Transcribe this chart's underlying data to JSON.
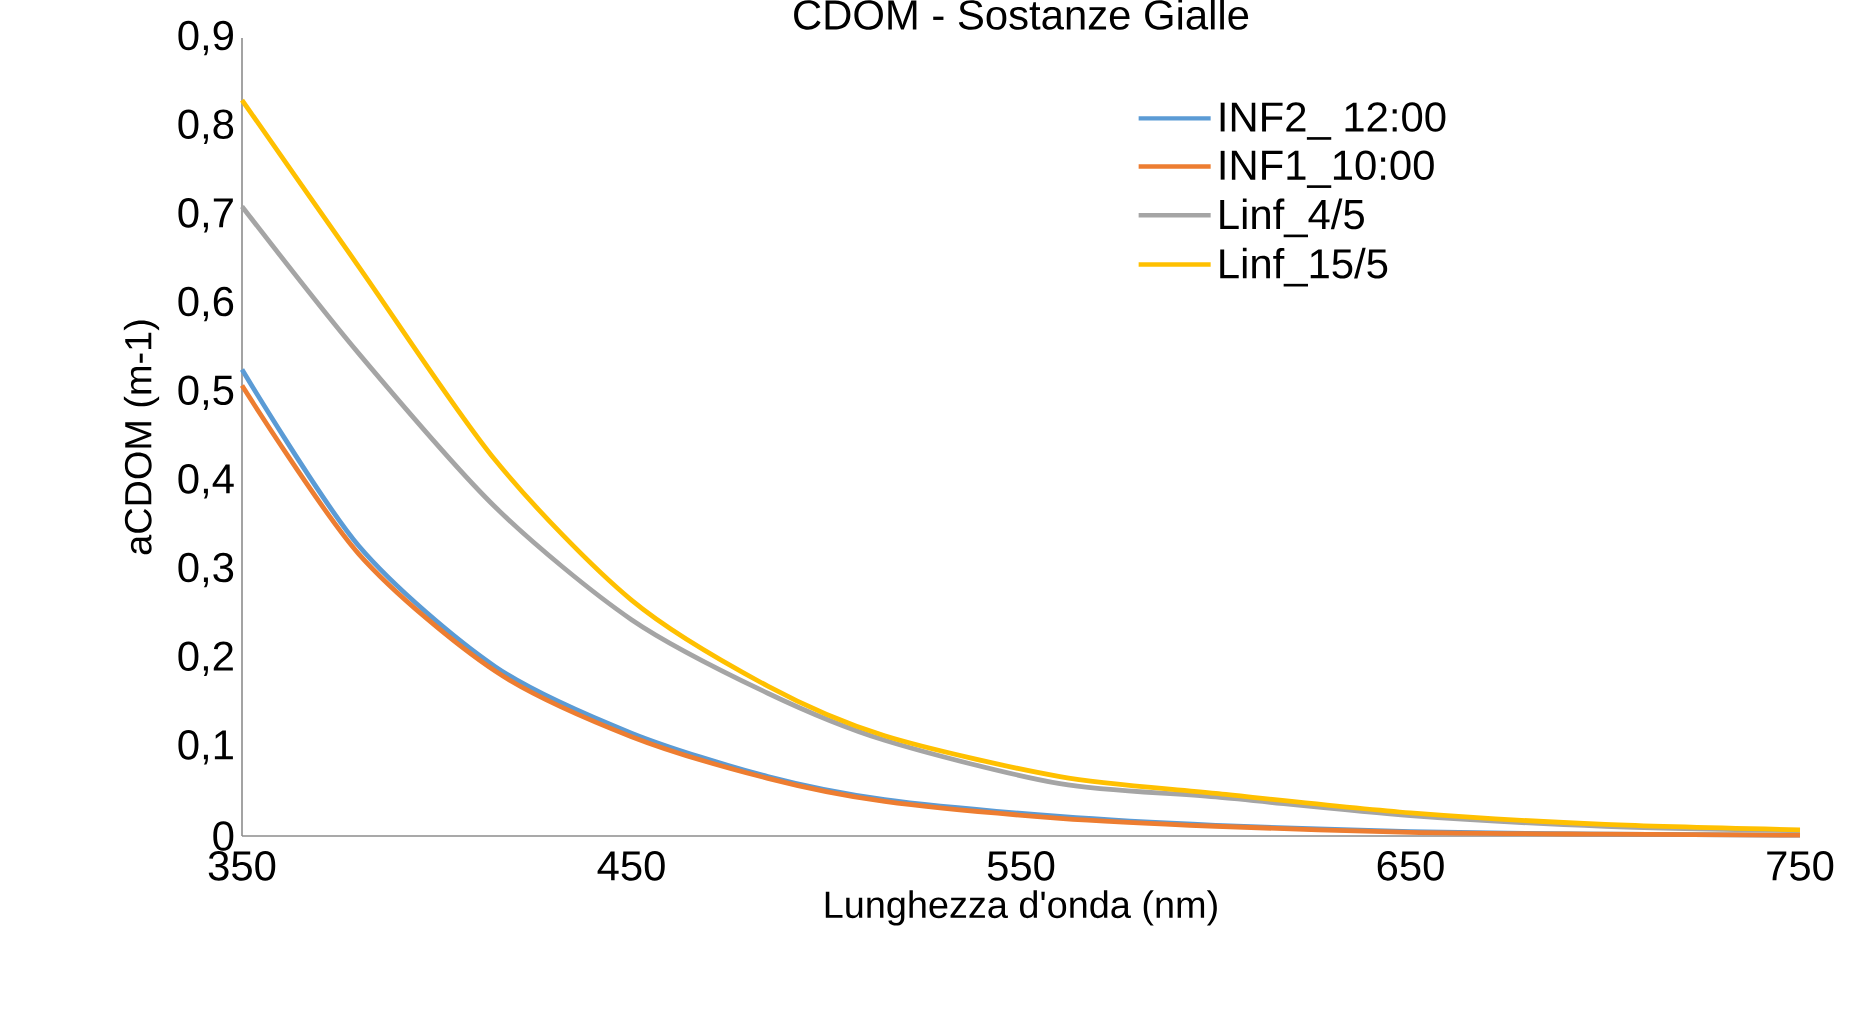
{
  "chart_data": {
    "type": "line",
    "title": "CDOM - Sostanze Gialle",
    "xlabel": "Lunghezza d'onda (nm)",
    "ylabel": "aCDOM (m-1)",
    "x": [
      350,
      380,
      415,
      450,
      485,
      515,
      560,
      600,
      650,
      700,
      750
    ],
    "series": [
      {
        "name": "INF2_ 12:00",
        "color": "#5b9bd5",
        "values": [
          0.526,
          0.327,
          0.191,
          0.116,
          0.067,
          0.041,
          0.022,
          0.012,
          0.005,
          0.002,
          0.001
        ]
      },
      {
        "name": "INF1_10:00",
        "color": "#ed7d31",
        "values": [
          0.508,
          0.318,
          0.186,
          0.112,
          0.065,
          0.039,
          0.02,
          0.011,
          0.004,
          0.002,
          0.001
        ]
      },
      {
        "name": "Linf_4/5",
        "color": "#a5a5a5",
        "values": [
          0.71,
          0.544,
          0.371,
          0.244,
          0.161,
          0.108,
          0.059,
          0.044,
          0.023,
          0.011,
          0.006
        ]
      },
      {
        "name": "Linf_15/5",
        "color": "#ffc000",
        "values": [
          0.83,
          0.642,
          0.424,
          0.266,
          0.169,
          0.113,
          0.067,
          0.048,
          0.026,
          0.013,
          0.007
        ]
      }
    ],
    "xlim": [
      350,
      750
    ],
    "xticks": [
      350,
      450,
      550,
      650,
      750
    ],
    "ylim": [
      0,
      0.9
    ],
    "yticks": [
      0,
      {
        "value": 0.1,
        "label": "0,1"
      },
      {
        "value": 0.2,
        "label": "0,2"
      },
      {
        "value": 0.3,
        "label": "0,3"
      },
      {
        "value": 0.4,
        "label": "0,4"
      },
      {
        "value": 0.5,
        "label": "0,5"
      },
      {
        "value": 0.6,
        "label": "0,6"
      },
      {
        "value": 0.7,
        "label": "0,7"
      },
      {
        "value": 0.8,
        "label": "0,8"
      },
      {
        "value": 0.9,
        "label": "0,9"
      }
    ],
    "grid": false,
    "legend": "top right",
    "marker": "none",
    "line_style": "solid"
  }
}
